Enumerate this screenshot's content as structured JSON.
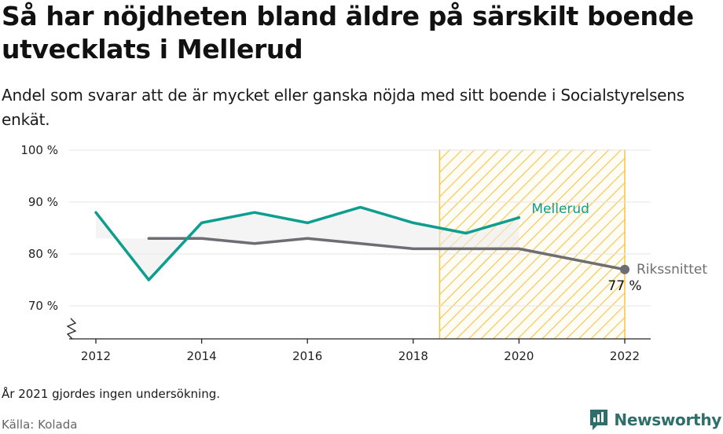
{
  "title": "Så har nöjdheten bland äldre på särskilt boende utvecklats i Mellerud",
  "subtitle": "Andel som svarar att de är mycket eller ganska nöjda med sitt boende i Socialstyrelsens enkät.",
  "note": "År 2021 gjordes ingen undersökning.",
  "source": "Källa: Kolada",
  "brand": {
    "name": "Newsworthy",
    "icon": "newsworthy-logo-icon",
    "color": "#2e6f6c"
  },
  "chart_data": {
    "type": "line",
    "x": [
      2012,
      2013,
      2014,
      2015,
      2016,
      2017,
      2018,
      2019,
      2020,
      2022
    ],
    "xticks": [
      "2012",
      "2014",
      "2016",
      "2018",
      "2020",
      "2022"
    ],
    "yticks": [
      "70 %",
      "80 %",
      "90 %",
      "100 %"
    ],
    "ylim": [
      70,
      100
    ],
    "y_axis_break": true,
    "grid": true,
    "series": [
      {
        "name": "Mellerud",
        "color": "#0e9e8f",
        "x": [
          2012,
          2013,
          2014,
          2015,
          2016,
          2017,
          2018,
          2019,
          2020
        ],
        "values": [
          88,
          75,
          86,
          88,
          86,
          89,
          86,
          84,
          87
        ]
      },
      {
        "name": "Rikssnittet",
        "color": "#6e6d73",
        "x": [
          2013,
          2014,
          2015,
          2016,
          2017,
          2018,
          2019,
          2020,
          2022
        ],
        "values": [
          83,
          83,
          82,
          83,
          82,
          81,
          81,
          81,
          77
        ]
      }
    ],
    "end_label": "77 %",
    "highlight_range": [
      2018.5,
      2022
    ],
    "highlight_color": "#f5c445"
  }
}
